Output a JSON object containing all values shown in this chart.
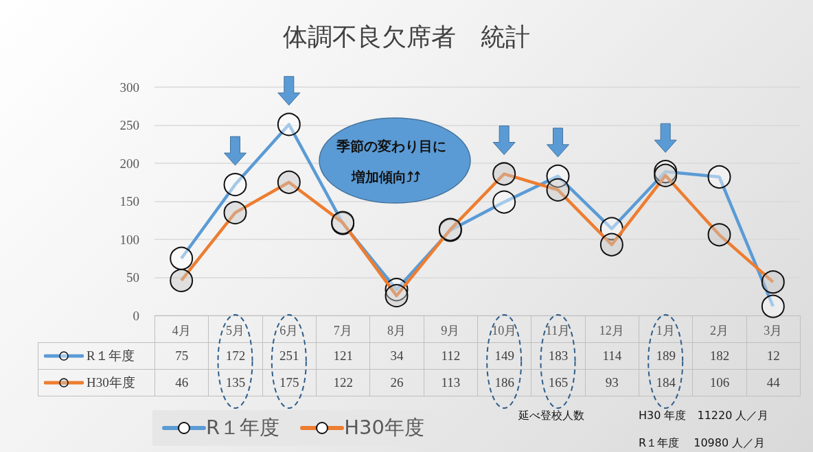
{
  "chart_data": {
    "type": "line",
    "title": "体調不良欠席者　統計",
    "categories": [
      "4月",
      "5月",
      "6月",
      "7月",
      "8月",
      "9月",
      "10月",
      "11月",
      "12月",
      "1月",
      "2月",
      "3月"
    ],
    "series": [
      {
        "name": "R１年度",
        "color": "#5b9bd5",
        "values": [
          75,
          172,
          251,
          121,
          34,
          112,
          149,
          183,
          114,
          189,
          182,
          12
        ]
      },
      {
        "name": "H30年度",
        "color": "#ed7d31",
        "values": [
          46,
          135,
          175,
          122,
          26,
          113,
          186,
          165,
          93,
          184,
          106,
          44
        ]
      }
    ],
    "ylim": [
      0,
      300
    ],
    "yticks": [
      0,
      50,
      100,
      150,
      200,
      250,
      300
    ],
    "grid": "y",
    "legend": "bottom",
    "marker": "circle",
    "line_style": "solid",
    "data_labels": true,
    "annotations": [
      "季節の変わり目に",
      "増加傾向⤴⤴",
      "延べ登校人数",
      "H30 年度　11220 人／月",
      "R１年度　 10980 人／月"
    ]
  }
}
